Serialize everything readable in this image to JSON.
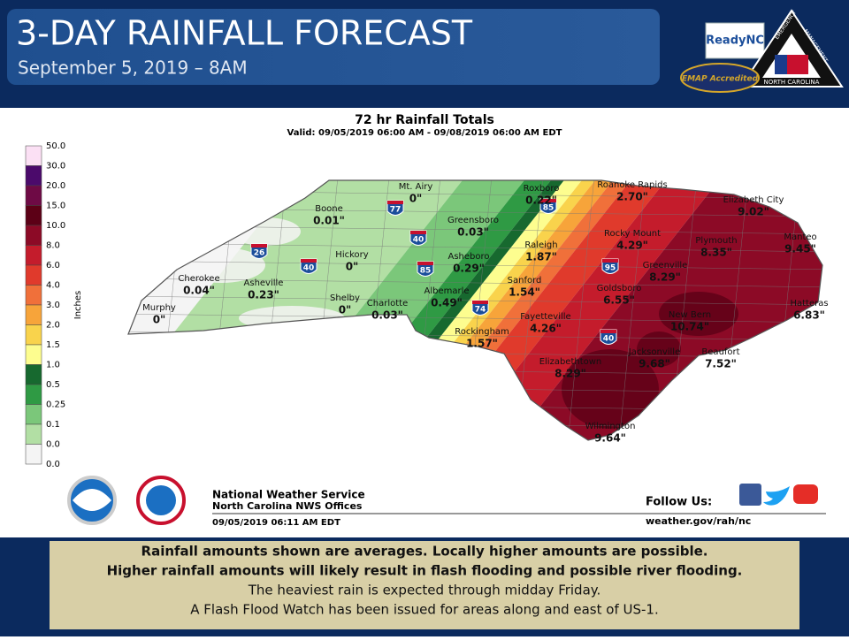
{
  "header": {
    "title": "3-DAY RAINFALL FORECAST",
    "subtitle": "September 5, 2019 – 8AM"
  },
  "logos": {
    "ready": "ReadyNC",
    "em_top": "EMERGENCY",
    "em_right": "MANAGEMENT",
    "em_state": "NORTH CAROLINA",
    "emap": "EMAP Accredited"
  },
  "map": {
    "title": "72 hr Rainfall Totals",
    "valid": "Valid: 09/05/2019 06:00 AM - 09/08/2019 06:00 AM EDT",
    "legend": {
      "unit": "Inches",
      "labels": [
        "50.0",
        "30.0",
        "20.0",
        "15.0",
        "10.0",
        "8.0",
        "6.0",
        "4.0",
        "3.0",
        "2.0",
        "1.5",
        "1.0",
        "0.5",
        "0.25",
        "0.1",
        "0.0",
        "0.0"
      ],
      "colors": [
        "#fbe0f4",
        "#4b0a6b",
        "#6e0a45",
        "#5c0016",
        "#8c0a26",
        "#c41c2c",
        "#e03a2c",
        "#f0703a",
        "#f7a43a",
        "#f9d34c",
        "#fdfd8f",
        "#17692f",
        "#2f9a44",
        "#7bc77a",
        "#b2dfa4",
        "#f4f4f4"
      ]
    },
    "cities": [
      {
        "name": "Mt. Airy",
        "amount": "0\""
      },
      {
        "name": "Roxboro",
        "amount": "0.22\""
      },
      {
        "name": "Roanoke Rapids",
        "amount": "2.70\""
      },
      {
        "name": "Elizabeth City",
        "amount": "9.02\""
      },
      {
        "name": "Boone",
        "amount": "0.01\""
      },
      {
        "name": "Greensboro",
        "amount": "0.03\""
      },
      {
        "name": "Rocky Mount",
        "amount": "4.29\""
      },
      {
        "name": "Plymouth",
        "amount": "8.35\""
      },
      {
        "name": "Manteo",
        "amount": "9.45\""
      },
      {
        "name": "Cherokee",
        "amount": "0.04\""
      },
      {
        "name": "Asheville",
        "amount": "0.23\""
      },
      {
        "name": "Hickory",
        "amount": "0\""
      },
      {
        "name": "Asheboro",
        "amount": "0.29\""
      },
      {
        "name": "Raleigh",
        "amount": "1.87\""
      },
      {
        "name": "Greenville",
        "amount": "8.29\""
      },
      {
        "name": "Sanford",
        "amount": "1.54\""
      },
      {
        "name": "Goldsboro",
        "amount": "6.55\""
      },
      {
        "name": "Albemarle",
        "amount": "0.49\""
      },
      {
        "name": "Murphy",
        "amount": "0\""
      },
      {
        "name": "Shelby",
        "amount": "0\""
      },
      {
        "name": "Charlotte",
        "amount": "0.03\""
      },
      {
        "name": "Hatteras",
        "amount": "6.83\""
      },
      {
        "name": "New Bern",
        "amount": "10.74\""
      },
      {
        "name": "Fayetteville",
        "amount": "4.26\""
      },
      {
        "name": "Rockingham",
        "amount": "1.57\""
      },
      {
        "name": "Jacksonville",
        "amount": "9.68\""
      },
      {
        "name": "Beaufort",
        "amount": "7.52\""
      },
      {
        "name": "Elizabethtown",
        "amount": "8.29\""
      },
      {
        "name": "Wilmington",
        "amount": "9.64\""
      }
    ],
    "highways": [
      "77",
      "85",
      "40",
      "26",
      "40",
      "85",
      "95",
      "74",
      "40"
    ]
  },
  "footer": {
    "agency": "National Weather Service",
    "offices": "North Carolina NWS Offices",
    "issued": "09/05/2019 06:11 AM EDT",
    "follow": "Follow Us:",
    "url": "weather.gov/rah/nc"
  },
  "notes": [
    "Rainfall amounts shown are averages. Locally higher amounts are possible.",
    "Higher rainfall amounts will likely result in flash flooding and possible river flooding.",
    "The heaviest rain is expected through midday Friday.",
    "A Flash Flood Watch has been issued for areas along and east of US-1."
  ]
}
